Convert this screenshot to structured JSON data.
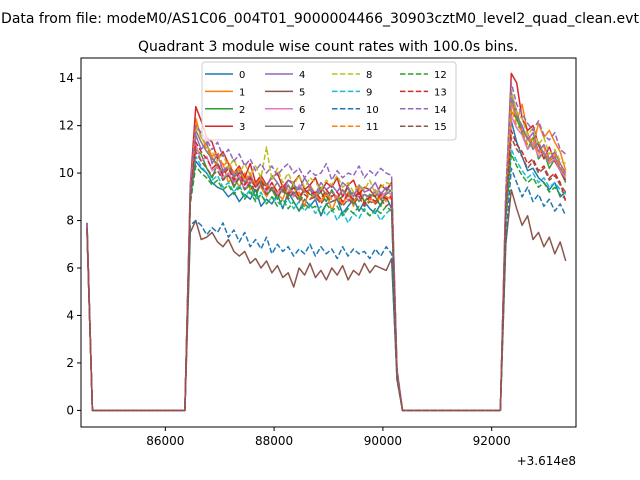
{
  "figure_title": "Data from file: modeM0/AS1C06_004T01_9000004466_30903cztM0_level2_quad_clean.evt",
  "chart_data": {
    "type": "line",
    "title": "Quadrant 3 module wise count rates with 100.0s bins.",
    "xlabel": "",
    "ylabel": "",
    "x_offset_label": "+3.614e8",
    "xlim": [
      84450,
      93550
    ],
    "ylim": [
      -0.7,
      14.85
    ],
    "x_ticks": [
      86000,
      88000,
      90000,
      92000
    ],
    "x_tick_labels": [
      "86000",
      "88000",
      "90000",
      "92000"
    ],
    "y_ticks": [
      0,
      2,
      4,
      6,
      8,
      10,
      12,
      14
    ],
    "y_tick_labels": [
      "0",
      "2",
      "4",
      "6",
      "8",
      "10",
      "12",
      "14"
    ],
    "grid": false,
    "legend_position": "top-center",
    "legend_columns": 4,
    "x_segments": {
      "seg1": {
        "start": 84560,
        "step": 100,
        "count": 2
      },
      "gap1": {
        "start": 84660,
        "end": 86360
      },
      "seg2": {
        "start": 86360,
        "step": 100,
        "count": 41
      },
      "gap2": {
        "start": 90560,
        "end": 92160
      },
      "seg3": {
        "start": 92160,
        "step": 100,
        "count": 13
      }
    },
    "series": [
      {
        "name": "0",
        "color": "#1f77b4",
        "dash": "solid",
        "seg1": [
          7.9,
          0
        ],
        "seg2": [
          0,
          9.0,
          10.5,
          10.2,
          10.0,
          9.6,
          9.4,
          9.3,
          9.0,
          9.2,
          8.8,
          9.1,
          8.9,
          9.3,
          8.6,
          8.9,
          8.7,
          9.1,
          8.5,
          9.2,
          8.8,
          8.4,
          8.9,
          8.6,
          8.9,
          8.2,
          8.7,
          8.8,
          8.9,
          8.3,
          8.6,
          8.9,
          8.4,
          8.8,
          8.5,
          8.3,
          8.7,
          9.0,
          8.5,
          1.5,
          0
        ],
        "seg3": [
          0,
          8.5,
          12.2,
          11.3,
          10.7,
          10.1,
          10.2,
          9.8,
          9.6,
          9.3,
          9.6,
          9.0,
          9.2
        ]
      },
      {
        "name": "1",
        "color": "#ff7f0e",
        "dash": "solid",
        "seg1": [
          7.7,
          0
        ],
        "seg2": [
          0,
          9.0,
          12.3,
          11.5,
          11.2,
          10.7,
          10.2,
          10.4,
          9.6,
          9.9,
          9.4,
          10.0,
          9.3,
          9.5,
          9.4,
          9.0,
          9.4,
          9.1,
          8.9,
          9.5,
          9.0,
          9.2,
          8.6,
          9.5,
          9.1,
          8.8,
          9.2,
          8.4,
          9.0,
          8.7,
          9.2,
          8.6,
          9.4,
          8.8,
          9.0,
          8.7,
          9.2,
          9.0,
          8.9,
          1.6,
          0
        ],
        "seg3": [
          0,
          8.8,
          13.0,
          12.2,
          12.9,
          11.7,
          11.1,
          12.1,
          11.5,
          11.8,
          11.3,
          10.9,
          10.1
        ]
      },
      {
        "name": "2",
        "color": "#2ca02c",
        "dash": "solid",
        "seg1": [
          7.8,
          0
        ],
        "seg2": [
          0,
          9.2,
          11.0,
          10.8,
          10.2,
          9.8,
          10.4,
          9.7,
          10.0,
          9.4,
          9.8,
          9.3,
          9.5,
          9.0,
          9.6,
          9.1,
          9.3,
          8.9,
          9.4,
          9.0,
          9.6,
          8.9,
          9.3,
          9.1,
          9.0,
          9.2,
          8.8,
          9.3,
          8.9,
          9.0,
          9.4,
          8.7,
          9.2,
          8.8,
          9.1,
          9.0,
          8.6,
          9.2,
          9.6,
          1.5,
          0
        ],
        "seg3": [
          0,
          8.4,
          12.6,
          12.3,
          11.7,
          11.0,
          11.5,
          10.6,
          10.9,
          10.2,
          10.6,
          10.1,
          9.6
        ]
      },
      {
        "name": "3",
        "color": "#d62728",
        "dash": "solid",
        "seg1": [
          7.6,
          0
        ],
        "seg2": [
          0,
          9.5,
          12.8,
          12.2,
          11.5,
          11.3,
          10.6,
          10.9,
          10.4,
          10.0,
          10.3,
          9.8,
          10.4,
          9.6,
          9.9,
          9.5,
          9.8,
          10.0,
          9.4,
          9.7,
          9.6,
          9.9,
          9.3,
          9.5,
          9.8,
          9.2,
          9.6,
          9.4,
          9.8,
          9.0,
          9.5,
          9.7,
          9.1,
          9.4,
          9.3,
          9.0,
          9.5,
          9.3,
          9.6,
          1.7,
          0
        ],
        "seg3": [
          0,
          9.0,
          14.2,
          13.8,
          12.3,
          11.8,
          12.0,
          11.2,
          10.6,
          11.1,
          10.5,
          10.1,
          9.7
        ]
      },
      {
        "name": "4",
        "color": "#9467bd",
        "dash": "solid",
        "seg1": [
          7.7,
          0
        ],
        "seg2": [
          0,
          8.9,
          11.6,
          11.0,
          11.3,
          10.4,
          10.8,
          10.1,
          10.3,
          9.9,
          10.2,
          9.6,
          9.9,
          9.5,
          9.8,
          9.4,
          9.9,
          9.6,
          9.2,
          9.7,
          9.5,
          9.3,
          9.8,
          9.4,
          9.1,
          9.6,
          9.3,
          9.5,
          9.2,
          9.6,
          9.4,
          9.0,
          9.5,
          9.2,
          9.3,
          9.6,
          9.1,
          9.4,
          9.2,
          1.6,
          0
        ],
        "seg3": [
          0,
          8.7,
          13.2,
          12.4,
          12.0,
          11.4,
          11.7,
          10.9,
          11.2,
          10.6,
          10.9,
          10.4,
          10.0
        ]
      },
      {
        "name": "5",
        "color": "#8c564b",
        "dash": "solid",
        "seg1": [
          7.9,
          0
        ],
        "seg2": [
          0,
          7.5,
          8.0,
          7.2,
          7.3,
          7.5,
          7.1,
          6.9,
          7.2,
          6.7,
          6.5,
          6.7,
          6.2,
          6.4,
          6.0,
          6.3,
          5.8,
          6.1,
          5.6,
          5.8,
          5.2,
          6.0,
          5.7,
          6.2,
          5.6,
          5.9,
          5.5,
          6.0,
          5.7,
          6.1,
          5.5,
          5.9,
          5.7,
          6.2,
          5.8,
          6.1,
          6.0,
          5.9,
          6.4,
          1.3,
          0
        ],
        "seg3": [
          0,
          7.0,
          9.3,
          8.5,
          7.8,
          8.2,
          7.2,
          7.5,
          6.9,
          7.3,
          6.6,
          7.1,
          6.3
        ]
      },
      {
        "name": "6",
        "color": "#e377c2",
        "dash": "solid",
        "seg1": [
          7.8,
          0
        ],
        "seg2": [
          0,
          9.0,
          11.2,
          10.5,
          10.7,
          10.1,
          10.3,
          9.8,
          10.0,
          9.6,
          9.9,
          9.3,
          9.7,
          9.4,
          9.5,
          9.2,
          9.6,
          9.1,
          9.4,
          9.3,
          9.0,
          9.5,
          9.2,
          9.3,
          8.9,
          9.4,
          9.1,
          9.2,
          9.0,
          9.3,
          8.8,
          9.2,
          9.0,
          9.1,
          8.9,
          9.3,
          9.0,
          9.2,
          9.1,
          1.6,
          0
        ],
        "seg3": [
          0,
          8.6,
          12.4,
          11.9,
          11.6,
          11.0,
          11.3,
          10.7,
          10.9,
          10.4,
          10.6,
          10.1,
          9.8
        ]
      },
      {
        "name": "7",
        "color": "#7f7f7f",
        "dash": "solid",
        "seg1": [
          7.6,
          0
        ],
        "seg2": [
          0,
          9.1,
          11.8,
          11.3,
          10.9,
          10.6,
          10.4,
          10.0,
          10.3,
          9.8,
          10.1,
          9.6,
          9.8,
          9.4,
          9.7,
          9.5,
          9.3,
          9.6,
          9.2,
          9.5,
          9.1,
          9.4,
          9.2,
          9.3,
          9.0,
          9.4,
          9.1,
          9.2,
          8.9,
          9.3,
          9.0,
          9.2,
          8.8,
          9.1,
          9.0,
          9.2,
          8.9,
          9.1,
          9.3,
          1.6,
          0
        ],
        "seg3": [
          0,
          8.9,
          13.4,
          12.6,
          11.8,
          11.5,
          11.0,
          11.3,
          10.8,
          10.5,
          10.7,
          10.2,
          9.9
        ]
      },
      {
        "name": "8",
        "color": "#bcbd22",
        "dash": "dashed",
        "seg1": [
          7.7,
          0
        ],
        "seg2": [
          0,
          9.3,
          12.0,
          11.5,
          11.1,
          10.9,
          10.5,
          10.8,
          10.2,
          10.6,
          10.0,
          10.4,
          9.9,
          10.3,
          9.8,
          11.1,
          9.7,
          10.2,
          9.6,
          10.0,
          9.5,
          9.9,
          9.4,
          9.8,
          9.6,
          9.3,
          9.7,
          9.5,
          9.9,
          9.4,
          9.6,
          9.2,
          9.5,
          9.3,
          9.7,
          9.1,
          9.4,
          9.6,
          9.5,
          1.7,
          0
        ],
        "seg3": [
          0,
          9.1,
          13.5,
          12.5,
          12.3,
          11.6,
          11.9,
          11.2,
          11.5,
          10.8,
          11.0,
          10.5,
          10.4
        ]
      },
      {
        "name": "9",
        "color": "#17becf",
        "dash": "dashed",
        "seg1": [
          7.8,
          0
        ],
        "seg2": [
          0,
          8.8,
          10.7,
          10.3,
          10.0,
          9.7,
          9.9,
          9.4,
          9.6,
          9.2,
          9.5,
          9.0,
          9.3,
          8.9,
          9.2,
          8.7,
          9.0,
          8.8,
          8.6,
          8.9,
          8.5,
          8.8,
          8.4,
          8.7,
          8.3,
          8.6,
          8.2,
          8.5,
          8.0,
          8.4,
          7.9,
          8.3,
          8.1,
          8.5,
          8.2,
          8.4,
          8.0,
          8.3,
          8.5,
          1.4,
          0
        ],
        "seg3": [
          0,
          8.2,
          11.0,
          10.5,
          10.1,
          9.8,
          10.0,
          9.6,
          9.8,
          9.4,
          9.6,
          9.3,
          9.1
        ]
      },
      {
        "name": "10",
        "color": "#1f77b4",
        "dash": "dashed",
        "seg1": [
          7.5,
          0
        ],
        "seg2": [
          0,
          7.8,
          8.0,
          7.8,
          7.4,
          7.7,
          7.5,
          7.9,
          7.3,
          7.6,
          7.1,
          7.5,
          6.9,
          7.2,
          6.8,
          7.3,
          6.6,
          7.0,
          6.7,
          6.9,
          6.5,
          6.8,
          6.6,
          7.0,
          6.5,
          6.9,
          6.6,
          6.8,
          6.4,
          6.9,
          6.5,
          6.8,
          6.6,
          6.7,
          6.4,
          6.8,
          6.5,
          6.9,
          6.6,
          1.3,
          0
        ],
        "seg3": [
          0,
          7.2,
          10.2,
          9.6,
          9.0,
          9.4,
          8.8,
          9.1,
          8.6,
          8.9,
          8.4,
          8.7,
          8.2
        ]
      },
      {
        "name": "11",
        "color": "#ff7f0e",
        "dash": "dashed",
        "seg1": [
          7.7,
          0
        ],
        "seg2": [
          0,
          9.1,
          12.1,
          11.6,
          11.0,
          10.7,
          10.9,
          10.3,
          10.5,
          10.0,
          10.2,
          9.7,
          10.0,
          9.5,
          9.8,
          9.4,
          9.6,
          9.2,
          9.5,
          9.1,
          9.4,
          9.0,
          9.3,
          8.9,
          9.2,
          8.8,
          9.1,
          8.9,
          9.0,
          8.7,
          9.1,
          8.8,
          9.0,
          8.6,
          8.9,
          8.7,
          9.0,
          8.8,
          9.1,
          1.6,
          0
        ],
        "seg3": [
          0,
          8.7,
          12.7,
          12.0,
          11.8,
          11.2,
          11.5,
          10.8,
          11.1,
          10.5,
          10.8,
          10.3,
          9.9
        ]
      },
      {
        "name": "12",
        "color": "#2ca02c",
        "dash": "dashed",
        "seg1": [
          7.6,
          0
        ],
        "seg2": [
          0,
          8.7,
          10.3,
          10.0,
          9.8,
          9.5,
          9.7,
          9.3,
          9.5,
          9.1,
          9.4,
          8.9,
          9.2,
          8.8,
          9.1,
          8.7,
          9.0,
          8.6,
          8.9,
          8.5,
          8.8,
          8.4,
          8.7,
          8.5,
          8.6,
          8.3,
          8.7,
          8.4,
          8.6,
          8.2,
          8.5,
          8.3,
          8.6,
          8.4,
          8.2,
          8.5,
          8.3,
          8.6,
          8.4,
          1.4,
          0
        ],
        "seg3": [
          0,
          8.0,
          10.8,
          10.3,
          9.9,
          9.6,
          9.8,
          9.4,
          9.6,
          9.2,
          9.4,
          9.1,
          8.9
        ]
      },
      {
        "name": "13",
        "color": "#d62728",
        "dash": "dashed",
        "seg1": [
          7.8,
          0
        ],
        "seg2": [
          0,
          9.2,
          11.3,
          10.9,
          10.6,
          10.2,
          10.4,
          9.9,
          10.2,
          9.7,
          10.0,
          9.5,
          9.8,
          9.4,
          9.7,
          9.3,
          9.6,
          9.2,
          9.5,
          9.1,
          9.4,
          9.0,
          9.3,
          9.1,
          9.2,
          8.9,
          9.3,
          9.0,
          9.2,
          8.8,
          9.1,
          8.9,
          9.2,
          8.7,
          9.0,
          8.8,
          9.1,
          8.9,
          9.0,
          1.5,
          0
        ],
        "seg3": [
          0,
          8.6,
          11.8,
          11.2,
          10.9,
          10.4,
          10.6,
          10.1,
          10.3,
          9.8,
          10.0,
          9.6,
          8.8
        ]
      },
      {
        "name": "14",
        "color": "#9467bd",
        "dash": "dashed",
        "seg1": [
          7.9,
          0
        ],
        "seg2": [
          0,
          9.5,
          12.0,
          11.7,
          11.4,
          11.0,
          11.3,
          10.7,
          11.0,
          10.5,
          10.8,
          10.3,
          10.6,
          10.1,
          10.4,
          10.0,
          10.3,
          9.9,
          10.2,
          10.4,
          10.0,
          10.2,
          9.8,
          10.1,
          9.9,
          10.0,
          10.4,
          9.7,
          10.1,
          9.8,
          10.0,
          9.9,
          10.3,
          9.8,
          10.1,
          9.9,
          10.2,
          10.0,
          9.9,
          1.8,
          0
        ],
        "seg3": [
          0,
          9.3,
          13.8,
          12.9,
          12.5,
          12.1,
          11.8,
          12.2,
          11.6,
          11.4,
          11.7,
          11.0,
          10.8
        ]
      },
      {
        "name": "15",
        "color": "#8c564b",
        "dash": "dashed",
        "seg1": [
          7.6,
          0
        ],
        "seg2": [
          0,
          8.9,
          10.9,
          10.5,
          10.2,
          9.9,
          10.1,
          9.7,
          9.9,
          9.5,
          9.8,
          9.3,
          9.6,
          9.2,
          9.5,
          9.1,
          9.4,
          9.0,
          9.3,
          8.9,
          9.2,
          8.8,
          9.1,
          8.9,
          9.0,
          8.7,
          9.0,
          8.8,
          8.9,
          8.6,
          8.9,
          8.7,
          9.0,
          8.6,
          8.8,
          8.7,
          8.9,
          8.6,
          8.8,
          1.5,
          0
        ],
        "seg3": [
          0,
          8.4,
          11.5,
          11.0,
          10.7,
          10.2,
          10.5,
          10.0,
          10.2,
          9.7,
          9.9,
          9.5,
          9.2
        ]
      }
    ]
  }
}
